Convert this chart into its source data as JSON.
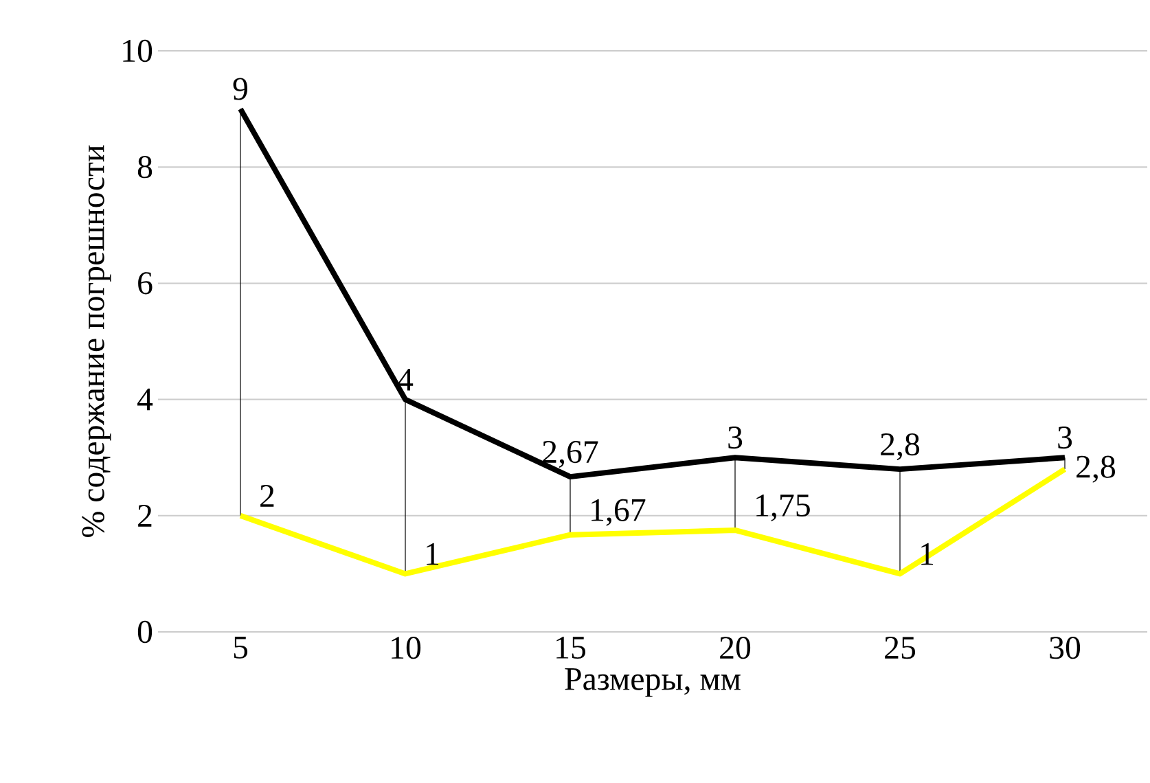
{
  "chart_data": {
    "type": "line",
    "xlabel": "Размеры, мм",
    "ylabel": "% содержание погрешности",
    "categories": [
      "5",
      "10",
      "15",
      "20",
      "25",
      "30"
    ],
    "series": [
      {
        "color": "#000000",
        "values": [
          9,
          4,
          2.67,
          3,
          2.8,
          3
        ],
        "value_labels": [
          "9",
          "4",
          "2,67",
          "3",
          "2,8",
          "3"
        ]
      },
      {
        "color": "#ffff00",
        "values": [
          2,
          1,
          1.67,
          1.75,
          1,
          2.8
        ],
        "value_labels": [
          "2",
          "1",
          "1,67",
          "1,75",
          "1",
          "2,8"
        ]
      }
    ],
    "ylim": [
      0,
      10
    ],
    "yticks": [
      0,
      2,
      4,
      6,
      8,
      10
    ],
    "grid": "y",
    "marker": "none",
    "line_style": "solid"
  }
}
